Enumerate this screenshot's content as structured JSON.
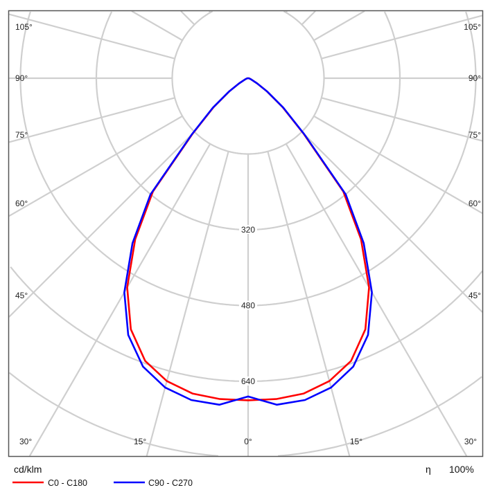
{
  "chart_data": {
    "type": "polar",
    "title": "",
    "unit_label": "cd/klm",
    "efficiency_label": "η",
    "efficiency_value": "100%",
    "radial_ticks": [
      160,
      320,
      480,
      640,
      800,
      960
    ],
    "radial_tick_labels": [
      "320",
      "480",
      "640"
    ],
    "angle_step_deg": 15,
    "angle_labels_left": [
      "105°",
      "90°",
      "75°",
      "60°",
      "45°",
      "30°",
      "15°"
    ],
    "angle_label_center": "0°",
    "angle_labels_right": [
      "105°",
      "90°",
      "75°",
      "60°",
      "45°",
      "30°",
      "15°"
    ],
    "grid": true,
    "legend_position": "bottom-left",
    "gamma_deg": [
      0,
      5,
      10,
      15,
      20,
      25,
      30,
      35,
      40,
      45,
      50,
      55,
      60,
      70,
      80,
      90
    ],
    "series": [
      {
        "name": "C0 - C180",
        "color": "#ff0000",
        "values": [
          680,
          680,
          676,
          662,
          635,
          585,
          510,
          415,
          312,
          165,
          95,
          48,
          22,
          6,
          2,
          0
        ]
      },
      {
        "name": "C90 - C270",
        "color": "#0000ff",
        "values": [
          672,
          692,
          690,
          676,
          648,
          598,
          522,
          425,
          320,
          168,
          97,
          49,
          22,
          6,
          2,
          0
        ]
      }
    ]
  }
}
